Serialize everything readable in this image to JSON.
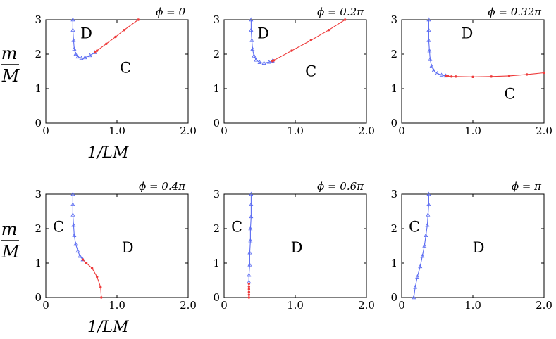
{
  "figure": {
    "ylabel_numerator": "m",
    "ylabel_denominator": "M",
    "xlabel": "1/LM"
  },
  "colors": {
    "blue": "#5b6cf2",
    "red": "#ee3b3b",
    "frame": "#000000"
  },
  "chart_data": [
    {
      "type": "line",
      "title": "ϕ = 0",
      "xlim": [
        0,
        2.0
      ],
      "ylim": [
        0,
        3
      ],
      "xticks": [
        0,
        1.0,
        2.0
      ],
      "xtick_labels": [
        "0",
        "1.0",
        "2.0"
      ],
      "yticks": [
        0,
        1,
        2,
        3
      ],
      "ytick_labels": [
        "0",
        "1",
        "2",
        "3"
      ],
      "region_labels": [
        {
          "text": "D",
          "x": 0.57,
          "y": 2.6
        },
        {
          "text": "C",
          "x": 1.12,
          "y": 1.6
        }
      ],
      "series": [
        {
          "name": "blue",
          "marker": "triangle",
          "x": [
            0.38,
            0.38,
            0.39,
            0.4,
            0.42,
            0.45,
            0.5,
            0.55,
            0.62,
            0.69
          ],
          "y": [
            3.0,
            2.7,
            2.4,
            2.15,
            2.0,
            1.92,
            1.88,
            1.9,
            1.96,
            2.05
          ]
        },
        {
          "name": "red",
          "marker": "star",
          "x": [
            0.69,
            0.72,
            0.85,
            0.98,
            1.1,
            1.3
          ],
          "y": [
            2.05,
            2.1,
            2.3,
            2.5,
            2.7,
            3.0
          ]
        }
      ]
    },
    {
      "type": "line",
      "title": "ϕ = 0.2π",
      "xlim": [
        0,
        2.0
      ],
      "ylim": [
        0,
        3
      ],
      "xticks": [
        0,
        1.0,
        2.0
      ],
      "xtick_labels": [
        "0",
        "1.0",
        "2.0"
      ],
      "yticks": [
        0,
        1,
        2,
        3
      ],
      "ytick_labels": [
        "0",
        "1",
        "2",
        "3"
      ],
      "region_labels": [
        {
          "text": "D",
          "x": 0.55,
          "y": 2.6
        },
        {
          "text": "C",
          "x": 1.22,
          "y": 1.5
        }
      ],
      "series": [
        {
          "name": "blue",
          "marker": "triangle",
          "x": [
            0.38,
            0.38,
            0.39,
            0.4,
            0.42,
            0.45,
            0.5,
            0.56,
            0.63,
            0.68
          ],
          "y": [
            3.0,
            2.7,
            2.4,
            2.15,
            1.95,
            1.83,
            1.76,
            1.74,
            1.77,
            1.8
          ]
        },
        {
          "name": "red",
          "marker": "star",
          "x": [
            0.68,
            0.7,
            0.95,
            1.22,
            1.47,
            1.7
          ],
          "y": [
            1.8,
            1.82,
            2.1,
            2.4,
            2.7,
            3.0
          ]
        }
      ]
    },
    {
      "type": "line",
      "title": "ϕ = 0.32π",
      "xlim": [
        0,
        2.0
      ],
      "ylim": [
        0,
        3
      ],
      "xticks": [
        0,
        1.0,
        2.0
      ],
      "xtick_labels": [
        "0",
        "1.0",
        "2.0"
      ],
      "yticks": [
        0,
        1,
        2,
        3
      ],
      "ytick_labels": [
        "0",
        "1",
        "2",
        "3"
      ],
      "region_labels": [
        {
          "text": "D",
          "x": 0.92,
          "y": 2.6
        },
        {
          "text": "C",
          "x": 1.52,
          "y": 0.85
        }
      ],
      "series": [
        {
          "name": "blue",
          "marker": "triangle",
          "x": [
            0.38,
            0.38,
            0.38,
            0.39,
            0.4,
            0.42,
            0.45,
            0.5,
            0.56,
            0.62
          ],
          "y": [
            3.0,
            2.7,
            2.4,
            2.1,
            1.85,
            1.65,
            1.52,
            1.44,
            1.39,
            1.37
          ]
        },
        {
          "name": "red",
          "marker": "star",
          "x": [
            0.62,
            0.65,
            0.7,
            0.76,
            1.0,
            1.26,
            1.51,
            1.76,
            2.0
          ],
          "y": [
            1.37,
            1.36,
            1.35,
            1.35,
            1.34,
            1.35,
            1.37,
            1.41,
            1.46
          ]
        }
      ]
    },
    {
      "type": "line",
      "title": "ϕ = 0.4π",
      "xlim": [
        0,
        2.0
      ],
      "ylim": [
        0,
        3
      ],
      "xticks": [
        0,
        1.0,
        2.0
      ],
      "xtick_labels": [
        "0",
        "1.0",
        "2.0"
      ],
      "yticks": [
        0,
        1,
        2,
        3
      ],
      "ytick_labels": [
        "0",
        "1",
        "2",
        "3"
      ],
      "region_labels": [
        {
          "text": "C",
          "x": 0.18,
          "y": 2.05
        },
        {
          "text": "D",
          "x": 1.15,
          "y": 1.45
        }
      ],
      "series": [
        {
          "name": "blue",
          "marker": "triangle",
          "x": [
            0.38,
            0.38,
            0.38,
            0.39,
            0.4,
            0.42,
            0.45,
            0.48,
            0.52
          ],
          "y": [
            3.0,
            2.7,
            2.4,
            2.1,
            1.8,
            1.55,
            1.35,
            1.2,
            1.1
          ]
        },
        {
          "name": "red",
          "marker": "star",
          "x": [
            0.52,
            0.57,
            0.65,
            0.72,
            0.77,
            0.78
          ],
          "y": [
            1.1,
            1.0,
            0.85,
            0.6,
            0.3,
            0.0
          ]
        }
      ]
    },
    {
      "type": "line",
      "title": "ϕ = 0.6π",
      "xlim": [
        0,
        2.0
      ],
      "ylim": [
        0,
        3
      ],
      "xticks": [
        0,
        1.0,
        2.0
      ],
      "xtick_labels": [
        "0",
        "1.0",
        "2.0"
      ],
      "yticks": [
        0,
        1,
        2,
        3
      ],
      "ytick_labels": [
        "0",
        "1",
        "2",
        "3"
      ],
      "region_labels": [
        {
          "text": "C",
          "x": 0.18,
          "y": 2.05
        },
        {
          "text": "D",
          "x": 1.02,
          "y": 1.45
        }
      ],
      "series": [
        {
          "name": "blue",
          "marker": "triangle",
          "x": [
            0.38,
            0.38,
            0.38,
            0.37,
            0.37,
            0.36,
            0.36,
            0.35,
            0.35
          ],
          "y": [
            3.0,
            2.7,
            2.35,
            2.0,
            1.65,
            1.3,
            0.95,
            0.65,
            0.45
          ]
        },
        {
          "name": "red",
          "marker": "star",
          "x": [
            0.35,
            0.35,
            0.35,
            0.35,
            0.35,
            0.35
          ],
          "y": [
            0.4,
            0.32,
            0.24,
            0.16,
            0.08,
            0.0
          ]
        }
      ]
    },
    {
      "type": "line",
      "title": "ϕ = π",
      "xlim": [
        0,
        2.0
      ],
      "ylim": [
        0,
        3
      ],
      "xticks": [
        0,
        1.0,
        2.0
      ],
      "xtick_labels": [
        "0",
        "1.0",
        "2.0"
      ],
      "yticks": [
        0,
        1,
        2,
        3
      ],
      "ytick_labels": [
        "0",
        "1",
        "2",
        "3"
      ],
      "region_labels": [
        {
          "text": "C",
          "x": 0.18,
          "y": 2.05
        },
        {
          "text": "D",
          "x": 1.08,
          "y": 1.45
        }
      ],
      "series": [
        {
          "name": "blue",
          "marker": "triangle",
          "x": [
            0.38,
            0.38,
            0.37,
            0.36,
            0.34,
            0.32,
            0.29,
            0.26,
            0.22,
            0.19,
            0.17
          ],
          "y": [
            3.0,
            2.7,
            2.4,
            2.1,
            1.8,
            1.5,
            1.2,
            0.9,
            0.6,
            0.3,
            0.0
          ]
        }
      ]
    }
  ]
}
